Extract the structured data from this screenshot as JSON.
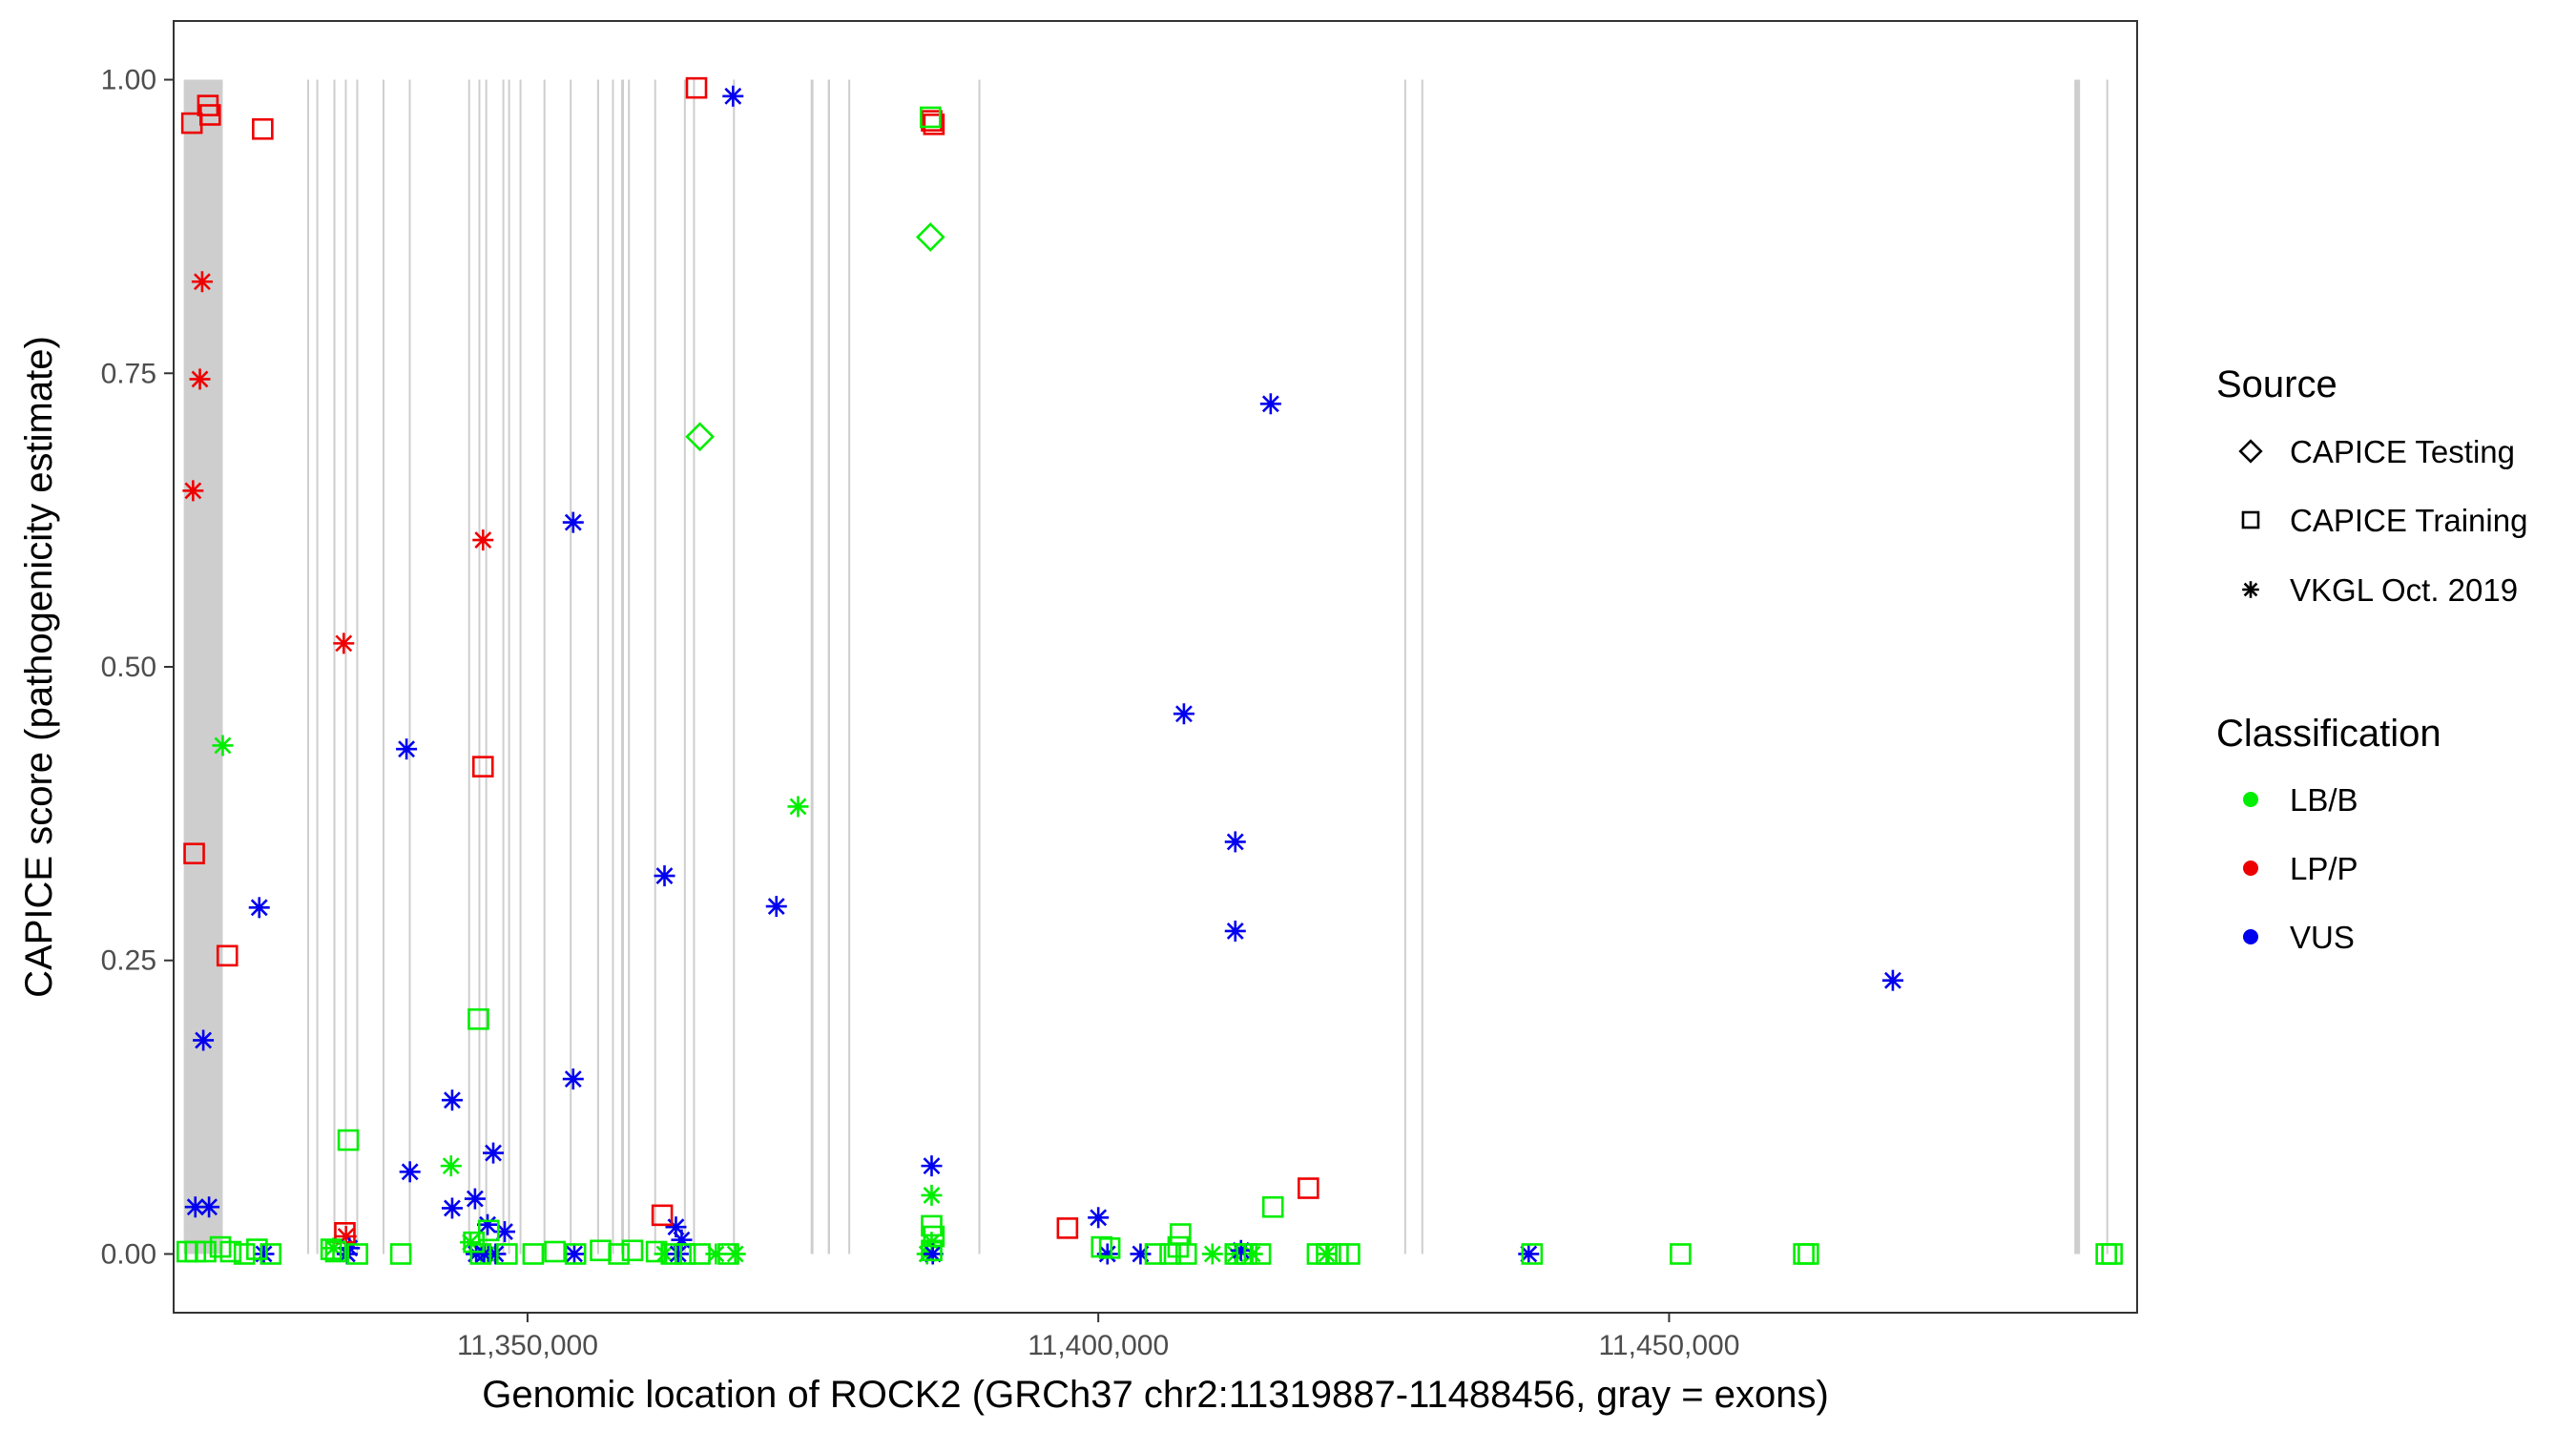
{
  "chart_data": {
    "type": "scatter",
    "xlabel": "Genomic location of ROCK2 (GRCh37 chr2:11319887-11488456, gray = exons)",
    "ylabel": "CAPICE score (pathogenicity estimate)",
    "xlim": [
      11319000,
      11491000
    ],
    "ylim": [
      -0.05,
      1.05
    ],
    "x_ticks": [
      11350000,
      11400000,
      11450000
    ],
    "x_tick_labels": [
      "11,350,000",
      "11,400,000",
      "11,450,000"
    ],
    "y_ticks": [
      0,
      0.25,
      0.5,
      0.75,
      1.0
    ],
    "y_tick_labels": [
      "0.00",
      "0.25",
      "0.50",
      "0.75",
      "1.00"
    ],
    "grid": false,
    "legend_position": "right",
    "legend": {
      "source_title": "Source",
      "source_entries": [
        {
          "label": "CAPICE Testing",
          "shape": "diamond"
        },
        {
          "label": "CAPICE Training",
          "shape": "square"
        },
        {
          "label": "VKGL Oct. 2019",
          "shape": "asterisk"
        }
      ],
      "class_title": "Classification",
      "class_entries": [
        {
          "label": "LB/B",
          "color": "#00ee00"
        },
        {
          "label": "LP/P",
          "color": "#ee0000"
        },
        {
          "label": "VUS",
          "color": "#0000ee"
        }
      ]
    },
    "colors": {
      "LB/B": "#00ee00",
      "LP/P": "#ee0000",
      "VUS": "#0000ee",
      "exon": "#bebebe"
    },
    "exons": [
      [
        11319887,
        11323300
      ],
      [
        11330700,
        11330800
      ],
      [
        11331500,
        11331600
      ],
      [
        11333000,
        11333150
      ],
      [
        11334000,
        11334100
      ],
      [
        11335000,
        11335100
      ],
      [
        11337300,
        11337450
      ],
      [
        11339600,
        11339700
      ],
      [
        11344800,
        11344950
      ],
      [
        11345700,
        11345850
      ],
      [
        11346300,
        11346400
      ],
      [
        11347800,
        11347900
      ],
      [
        11348300,
        11348400
      ],
      [
        11349300,
        11349400
      ],
      [
        11351400,
        11351500
      ],
      [
        11353700,
        11353850
      ],
      [
        11356100,
        11356250
      ],
      [
        11357400,
        11357550
      ],
      [
        11358200,
        11358450
      ],
      [
        11358800,
        11358950
      ],
      [
        11361100,
        11361200
      ],
      [
        11363700,
        11363800
      ],
      [
        11364500,
        11364600
      ],
      [
        11368000,
        11368100
      ],
      [
        11374800,
        11375050
      ],
      [
        11376300,
        11376500
      ],
      [
        11378100,
        11378200
      ],
      [
        11389500,
        11389600
      ],
      [
        11426800,
        11426950
      ],
      [
        11428300,
        11428400
      ],
      [
        11485500,
        11486000
      ],
      [
        11488300,
        11488456
      ]
    ],
    "series": [
      {
        "name": "VKGL Oct. 2019",
        "classification": "LP/P",
        "shape": "asterisk",
        "x": [
          11320700,
          11321300,
          11321500,
          11333900,
          11346100,
          11334100
        ],
        "y": [
          0.65,
          0.745,
          0.828,
          0.52,
          0.608,
          0.015
        ]
      },
      {
        "name": "VKGL Oct. 2019",
        "classification": "LB/B",
        "shape": "asterisk",
        "x": [
          11323300,
          11343300,
          11373700,
          11385400,
          11385400,
          11333000,
          11345000,
          11346500,
          11362000,
          11366500,
          11368200,
          11385000,
          11410000,
          11412000,
          11413500,
          11420000
        ],
        "y": [
          0.433,
          0.075,
          0.381,
          0.05,
          0.01,
          0.005,
          0.01,
          0.0,
          0.0,
          0.0,
          0.0,
          0.0,
          0.0,
          0.0,
          0.0,
          0.0
        ]
      },
      {
        "name": "VKGL Oct. 2019",
        "classification": "VUS",
        "shape": "asterisk",
        "x": [
          11368000,
          11354000,
          11339400,
          11326500,
          11321600,
          11343400,
          11354000,
          11362000,
          11371800,
          11347000,
          11339700,
          11343400,
          11345400,
          11346500,
          11348000,
          11320900,
          11322100,
          11363000,
          11363500,
          11385400,
          11407500,
          11412000,
          11412000,
          11415100,
          11469600,
          11400000,
          11326900,
          11334200,
          11334400,
          11345500,
          11346200,
          11347200,
          11354100,
          11363200,
          11385500,
          11400800,
          11403700,
          11412500,
          11437700
        ],
        "y": [
          0.986,
          0.623,
          0.43,
          0.295,
          0.182,
          0.131,
          0.149,
          0.322,
          0.296,
          0.086,
          0.07,
          0.039,
          0.047,
          0.025,
          0.019,
          0.04,
          0.04,
          0.023,
          0.012,
          0.075,
          0.46,
          0.351,
          0.275,
          0.724,
          0.233,
          0.031,
          0.0,
          0.0,
          0.005,
          0.0,
          0.0,
          0.0,
          0.0,
          0.0,
          0.0,
          0.0,
          0.0,
          0.003,
          0.0
        ]
      },
      {
        "name": "CAPICE Training",
        "classification": "LP/P",
        "shape": "square",
        "x": [
          11364800,
          11322000,
          11322200,
          11320600,
          11326800,
          11320800,
          11323700,
          11346100,
          11361800,
          11397300,
          11418400,
          11334000,
          11385400,
          11385600
        ],
        "y": [
          0.993,
          0.978,
          0.97,
          0.963,
          0.958,
          0.341,
          0.254,
          0.415,
          0.033,
          0.022,
          0.056,
          0.018,
          0.965,
          0.962
        ]
      },
      {
        "name": "CAPICE Training",
        "classification": "LB/B",
        "shape": "square",
        "x": [
          11385300,
          11345700,
          11334300,
          11385400,
          11385600,
          11407200,
          11415300,
          11401000,
          11320200,
          11320900,
          11321800,
          11323100,
          11324000,
          11325200,
          11326300,
          11327500,
          11332800,
          11333200,
          11335100,
          11338900,
          11345300,
          11345900,
          11346600,
          11348200,
          11350500,
          11352400,
          11354200,
          11356400,
          11358000,
          11359200,
          11361300,
          11362600,
          11363800,
          11365100,
          11367600,
          11385400,
          11400300,
          11405000,
          11406300,
          11407000,
          11407700,
          11412000,
          11413000,
          11414200,
          11419200,
          11420000,
          11421000,
          11422000,
          11438000,
          11451000,
          11461800,
          11462200,
          11488300,
          11488800
        ],
        "y": [
          0.968,
          0.2,
          0.097,
          0.024,
          0.015,
          0.017,
          0.04,
          0.005,
          0.002,
          0.002,
          0.002,
          0.006,
          0.002,
          0.0,
          0.004,
          0.0,
          0.004,
          0.002,
          0.0,
          0.0,
          0.01,
          0.0,
          0.02,
          0.0,
          0.0,
          0.002,
          0.0,
          0.003,
          0.0,
          0.003,
          0.002,
          0.0,
          0.0,
          0.0,
          0.0,
          0.003,
          0.006,
          0.0,
          0.0,
          0.006,
          0.0,
          0.0,
          0.0,
          0.0,
          0.0,
          0.0,
          0.0,
          0.0,
          0.0,
          0.0,
          0.0,
          0.0,
          0.0,
          0.0
        ]
      },
      {
        "name": "CAPICE Testing",
        "classification": "LB/B",
        "shape": "diamond",
        "x": [
          11385300,
          11365100
        ],
        "y": [
          0.866,
          0.696
        ]
      }
    ]
  }
}
